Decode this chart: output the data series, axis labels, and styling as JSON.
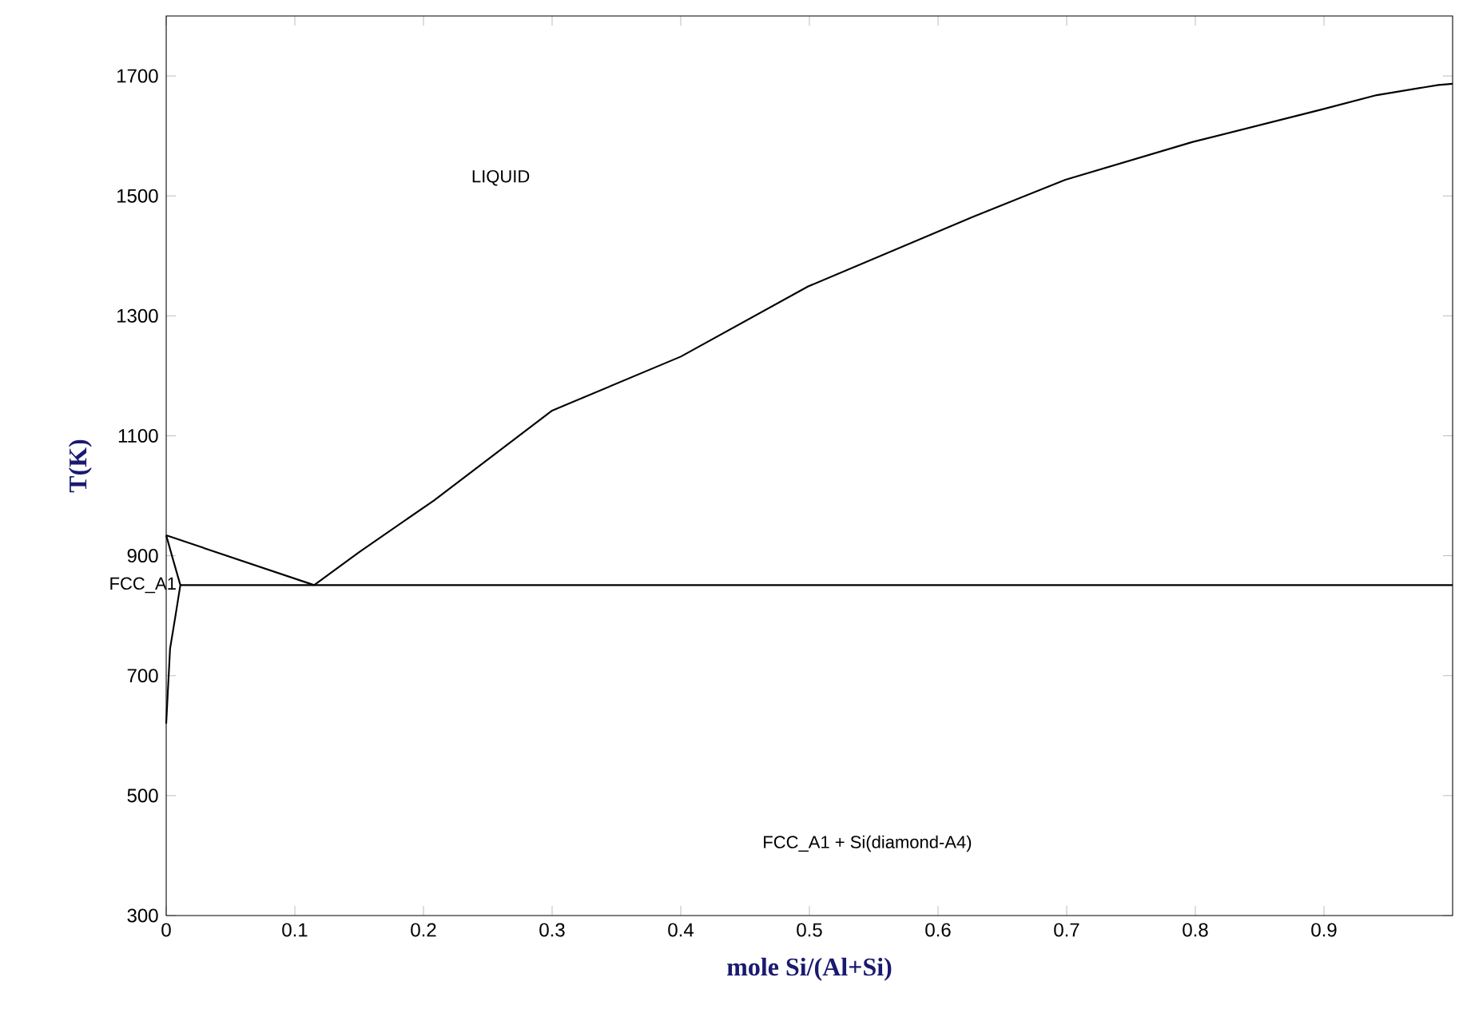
{
  "chart_data": {
    "type": "line",
    "xlabel": "mole Si/(Al+Si)",
    "ylabel": "T(K)",
    "xlim": [
      0,
      1
    ],
    "ylim": [
      300,
      1800
    ],
    "xticks": [
      0,
      0.1,
      0.2,
      0.3,
      0.4,
      0.5,
      0.6,
      0.7,
      0.8,
      0.9
    ],
    "yticks": [
      300,
      500,
      700,
      900,
      1100,
      1300,
      1500,
      1700
    ],
    "grid": false,
    "marker": "none",
    "line_style": "solid",
    "series": [
      {
        "color": "#000000",
        "x": [
          0,
          0.115
        ],
        "values": [
          934,
          851
        ]
      },
      {
        "color": "#000000",
        "x": [
          0.115,
          0.15,
          0.208,
          0.3,
          0.4,
          0.499,
          0.627,
          0.699,
          0.798,
          0.898,
          0.941,
          0.989,
          1.0
        ],
        "values": [
          851,
          906,
          992,
          1142,
          1232,
          1349,
          1465,
          1527,
          1590,
          1644,
          1668,
          1685,
          1687
        ]
      },
      {
        "color": "#000000",
        "x": [
          0.011,
          1.0
        ],
        "values": [
          851,
          851
        ]
      },
      {
        "color": "#000000",
        "x": [
          0,
          0.005,
          0.011,
          0.007,
          0.003,
          0
        ],
        "values": [
          934,
          896,
          851,
          797,
          745,
          620
        ]
      }
    ],
    "annotations": [
      "LIQUID",
      {
        "text": "FCC_A1",
        "x": 0.01,
        "y": 851
      },
      "FCC_A1 + Si(diamond-A4)"
    ]
  }
}
